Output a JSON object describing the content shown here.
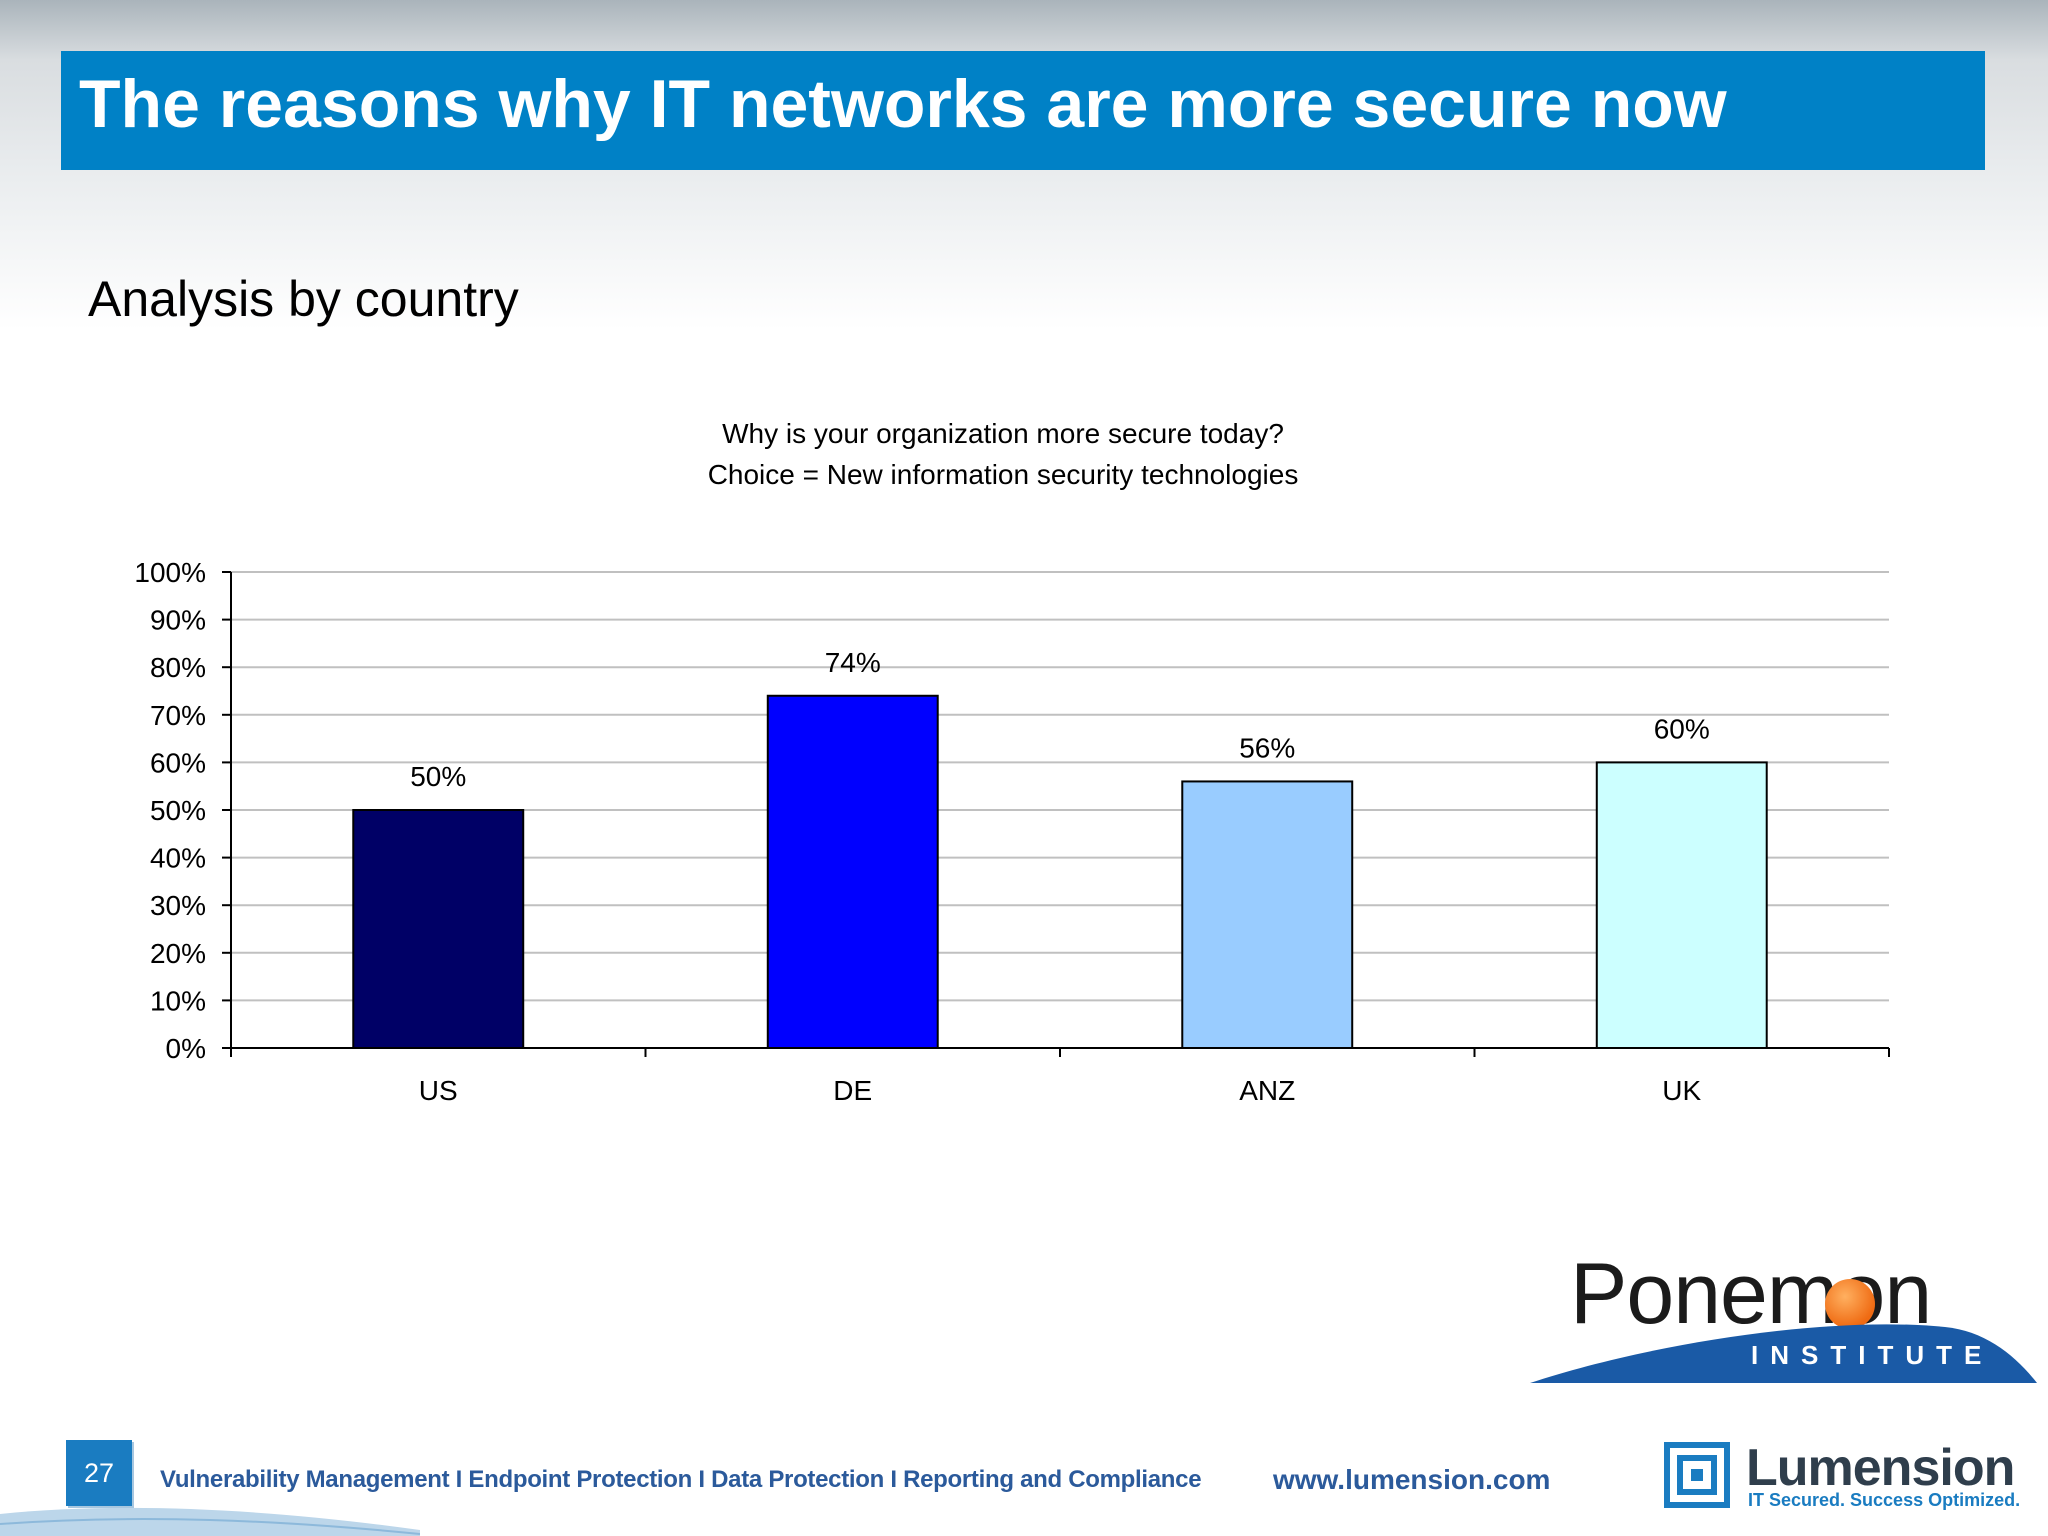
{
  "slide": {
    "title": "The reasons why IT networks are more secure now",
    "subtitle": "Analysis by country",
    "page_number": "27"
  },
  "chart_data": {
    "type": "bar",
    "title_lines": [
      "Why is your organization more secure today?",
      "Choice = New  information security technologies"
    ],
    "categories": [
      "US",
      "DE",
      "ANZ",
      "UK"
    ],
    "values": [
      50,
      74,
      56,
      60
    ],
    "data_labels": [
      "50%",
      "74%",
      "56%",
      "60%"
    ],
    "colors": [
      "#000066",
      "#0000ff",
      "#99ccff",
      "#ccffff"
    ],
    "y_ticks": [
      "0%",
      "10%",
      "20%",
      "30%",
      "40%",
      "50%",
      "60%",
      "70%",
      "80%",
      "90%",
      "100%"
    ],
    "ylim": [
      0,
      100
    ],
    "grid": true,
    "legend": "none"
  },
  "logos": {
    "ponemon_name": "Ponemon",
    "ponemon_sub": "INSTITUTE",
    "lumension_name": "Lumension",
    "lumension_tagline": "IT Secured. Success Optimized."
  },
  "footer": {
    "links": "Vulnerability Management I Endpoint Protection I Data Protection I Reporting and Compliance",
    "url": "www.lumension.com"
  }
}
